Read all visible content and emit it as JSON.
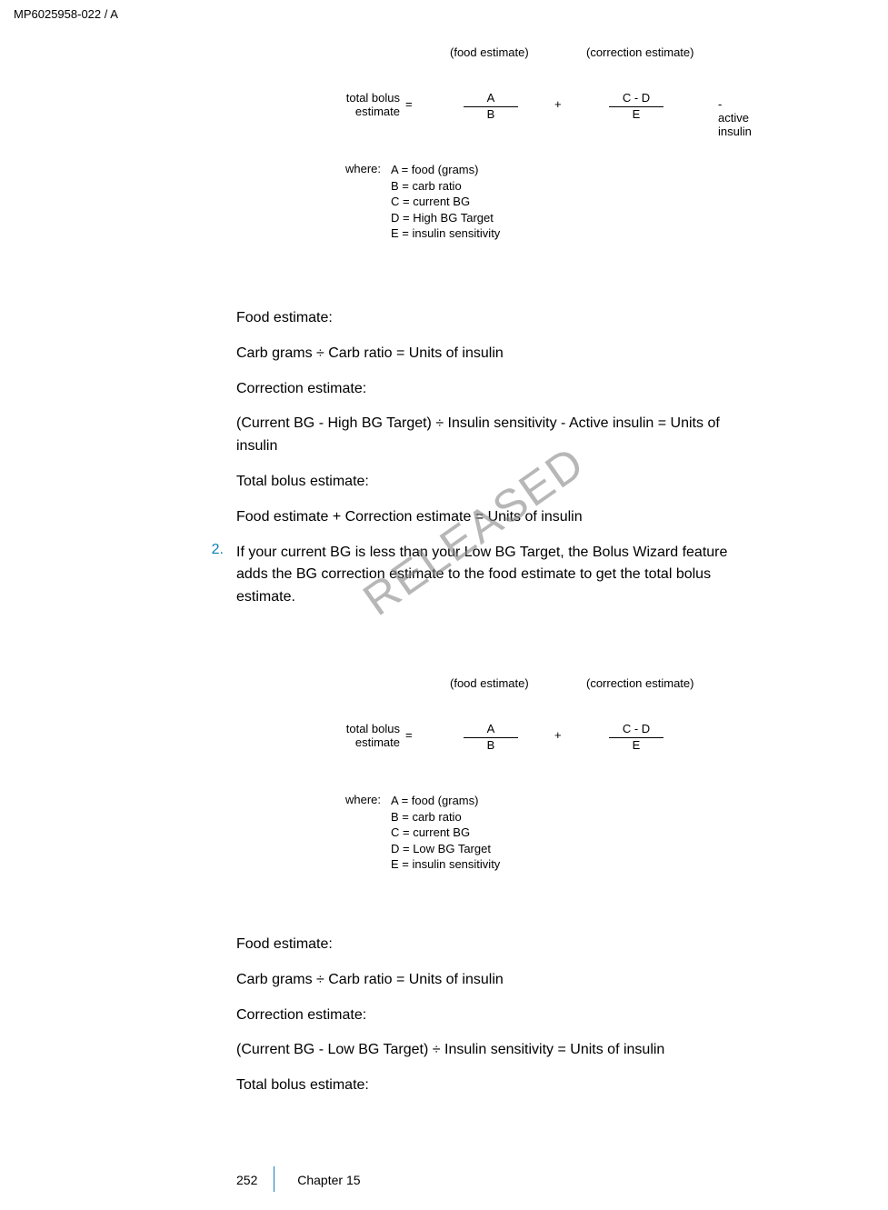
{
  "header": "MP6025958-022 / A",
  "formula1": {
    "food_label": "(food estimate)",
    "corr_label": "(correction estimate)",
    "total_bolus_line1": "total bolus",
    "total_bolus_line2": "estimate",
    "equals": "=",
    "frac_a_top": "A",
    "frac_a_bot": "B",
    "plus": "+",
    "frac_c_top": "C - D",
    "frac_c_bot": "E",
    "active_insulin": "- active insulin",
    "where": "where:",
    "def_a": "A = food (grams)",
    "def_b": "B = carb ratio",
    "def_c": "C = current BG",
    "def_d": "D = High BG Target",
    "def_e": "E = insulin sensitivity"
  },
  "block1": {
    "p1": "Food estimate:",
    "p2": "Carb grams ÷ Carb ratio = Units of insulin",
    "p3": "Correction estimate:",
    "p4": "(Current BG - High BG Target) ÷ Insulin sensitivity - Active insulin = Units of insulin",
    "p5": "Total bolus estimate:",
    "p6": "Food estimate + Correction estimate = Units of insulin"
  },
  "list": {
    "num": "2.",
    "text": "If your current BG is less than your Low BG Target, the Bolus Wizard feature adds the BG correction estimate to the food estimate to get the total bolus estimate."
  },
  "formula2": {
    "food_label": "(food estimate)",
    "corr_label": "(correction estimate)",
    "total_bolus_line1": "total bolus",
    "total_bolus_line2": "estimate",
    "equals": "=",
    "frac_a_top": "A",
    "frac_a_bot": "B",
    "plus": "+",
    "frac_c_top": "C - D",
    "frac_c_bot": "E",
    "where": "where:",
    "def_a": "A = food (grams)",
    "def_b": "B = carb ratio",
    "def_c": "C = current BG",
    "def_d": "D = Low BG Target",
    "def_e": "E = insulin sensitivity"
  },
  "block2": {
    "p1": "Food estimate:",
    "p2": "Carb grams ÷ Carb ratio = Units of insulin",
    "p3": "Correction estimate:",
    "p4": "(Current BG - Low BG Target) ÷ Insulin sensitivity = Units of insulin",
    "p5": "Total bolus estimate:"
  },
  "watermark": "RELEASED",
  "footer": {
    "page": "252",
    "chapter": "Chapter 15"
  }
}
